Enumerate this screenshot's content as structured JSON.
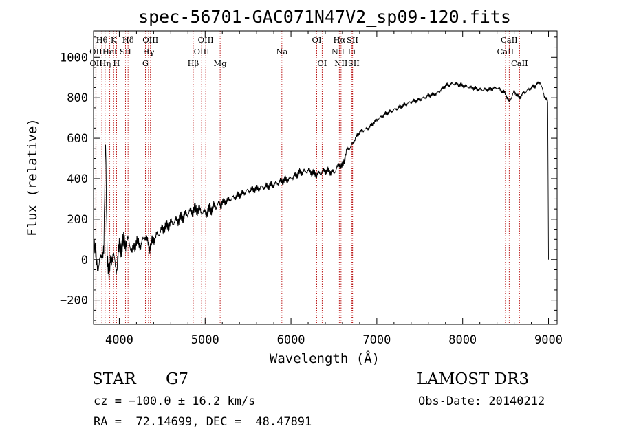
{
  "chart_data": {
    "type": "line",
    "title": "spec-56701-GAC071N47V2_sp09-120.fits",
    "xlabel": "Wavelength (Å)",
    "ylabel": "Flux (relative)",
    "xlim": [
      3700,
      9100
    ],
    "ylim": [
      -320,
      1130
    ],
    "xticks": [
      4000,
      5000,
      6000,
      7000,
      8000,
      9000
    ],
    "xtick_labels": [
      "4000",
      "5000",
      "6000",
      "7000",
      "8000",
      "9000"
    ],
    "yticks": [
      -200,
      0,
      200,
      400,
      600,
      800,
      1000
    ],
    "ytick_labels": [
      "−200",
      "0",
      "200",
      "400",
      "600",
      "800",
      "1000"
    ],
    "series": [
      {
        "name": "flux",
        "x": [
          3700,
          3730,
          3760,
          3790,
          3820,
          3840,
          3860,
          3880,
          3900,
          3930,
          3970,
          4000,
          4050,
          4100,
          4150,
          4200,
          4250,
          4300,
          4350,
          4400,
          4500,
          4600,
          4700,
          4800,
          4900,
          5000,
          5100,
          5200,
          5300,
          5400,
          5500,
          5600,
          5700,
          5800,
          5900,
          6000,
          6100,
          6200,
          6300,
          6400,
          6500,
          6560,
          6600,
          6650,
          6700,
          6750,
          6800,
          6900,
          7000,
          7100,
          7200,
          7300,
          7400,
          7500,
          7600,
          7700,
          7800,
          7900,
          8000,
          8100,
          8200,
          8300,
          8400,
          8500,
          8540,
          8600,
          8660,
          8700,
          8800,
          8850,
          8900,
          8950,
          8990,
          9000
        ],
        "y": [
          60,
          20,
          -50,
          30,
          40,
          600,
          20,
          -100,
          20,
          10,
          -40,
          60,
          80,
          100,
          40,
          90,
          70,
          120,
          60,
          100,
          150,
          180,
          200,
          230,
          250,
          230,
          260,
          280,
          300,
          320,
          340,
          350,
          360,
          370,
          390,
          400,
          430,
          440,
          420,
          440,
          430,
          470,
          460,
          540,
          560,
          600,
          630,
          650,
          690,
          720,
          740,
          760,
          780,
          790,
          810,
          820,
          860,
          870,
          860,
          850,
          840,
          840,
          850,
          820,
          780,
          830,
          800,
          820,
          850,
          860,
          880,
          810,
          780,
          0
        ]
      }
    ],
    "lines": [
      {
        "label": "OII",
        "wavelength": 3727,
        "row": 2
      },
      {
        "label": "OII",
        "wavelength": 3729,
        "row": 3
      },
      {
        "label": "Hθ",
        "wavelength": 3797,
        "row": 1
      },
      {
        "label": "Hη",
        "wavelength": 3835,
        "row": 3
      },
      {
        "label": "HeI",
        "wavelength": 3889,
        "row": 2
      },
      {
        "label": "K",
        "wavelength": 3934,
        "row": 1
      },
      {
        "label": "H",
        "wavelength": 3968,
        "row": 3
      },
      {
        "label": "SII",
        "wavelength": 4072,
        "row": 2
      },
      {
        "label": "Hδ",
        "wavelength": 4102,
        "row": 1
      },
      {
        "label": "G",
        "wavelength": 4305,
        "row": 3
      },
      {
        "label": "Hγ",
        "wavelength": 4340,
        "row": 2
      },
      {
        "label": "OIII",
        "wavelength": 4363,
        "row": 1
      },
      {
        "label": "Hβ",
        "wavelength": 4861,
        "row": 3
      },
      {
        "label": "OIII",
        "wavelength": 4959,
        "row": 2
      },
      {
        "label": "OIII",
        "wavelength": 5007,
        "row": 1
      },
      {
        "label": "Mg",
        "wavelength": 5175,
        "row": 3
      },
      {
        "label": "Na",
        "wavelength": 5894,
        "row": 2
      },
      {
        "label": "OI",
        "wavelength": 6300,
        "row": 1
      },
      {
        "label": "OI",
        "wavelength": 6363,
        "row": 3
      },
      {
        "label": "NII",
        "wavelength": 6548,
        "row": 2
      },
      {
        "label": "Hα",
        "wavelength": 6563,
        "row": 1
      },
      {
        "label": "NII",
        "wavelength": 6583,
        "row": 3
      },
      {
        "label": "Li",
        "wavelength": 6707,
        "row": 2
      },
      {
        "label": "SII",
        "wavelength": 6716,
        "row": 1
      },
      {
        "label": "SII",
        "wavelength": 6731,
        "row": 3
      },
      {
        "label": "CaII",
        "wavelength": 8498,
        "row": 2
      },
      {
        "label": "CaII",
        "wavelength": 8542,
        "row": 1
      },
      {
        "label": "CaII",
        "wavelength": 8662,
        "row": 3
      }
    ]
  },
  "info": {
    "class": "STAR",
    "subclass": "G7",
    "cz": "cz = −100.0 ± 16.2 km/s",
    "radec": "RA =  72.14699, DEC =  48.47891",
    "survey": "LAMOST DR3",
    "obs_date": "Obs-Date: 20140212"
  }
}
